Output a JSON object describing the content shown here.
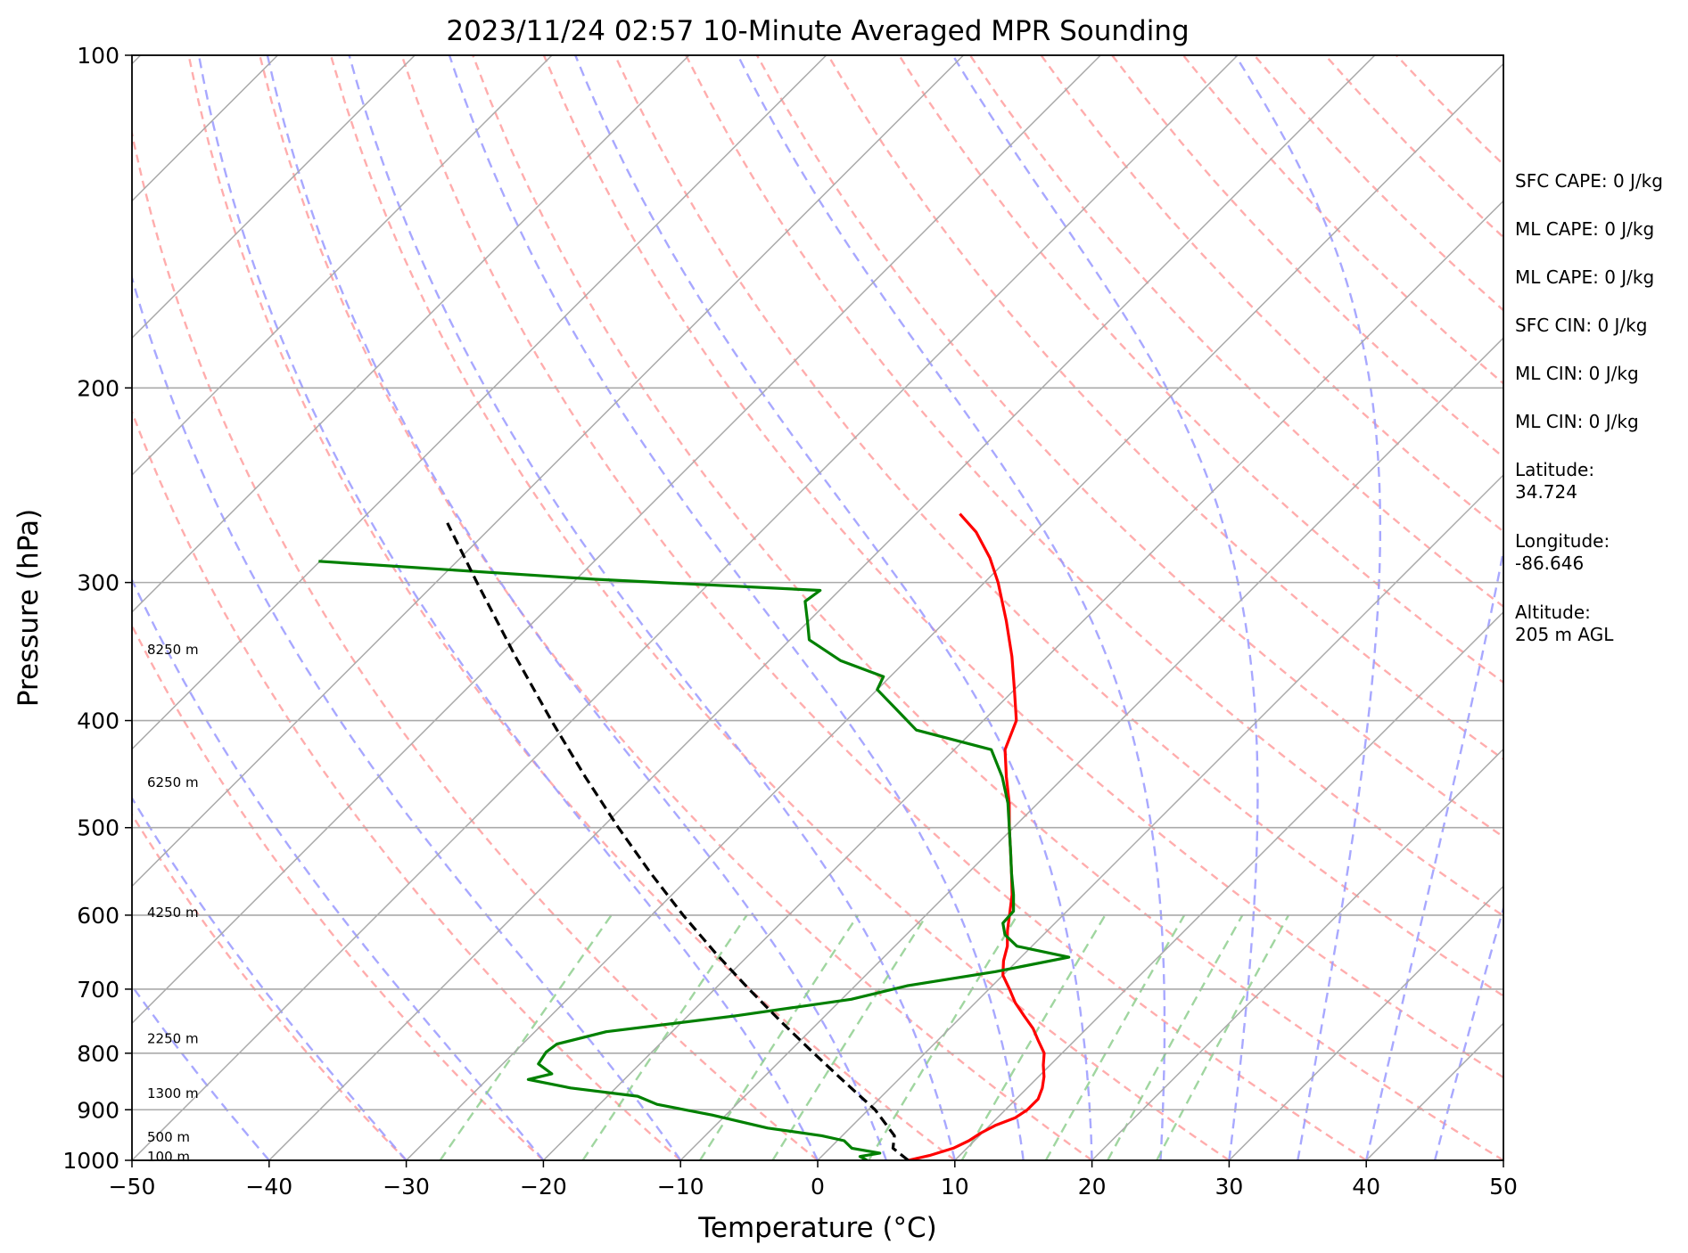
{
  "chart_data": {
    "type": "line",
    "subtype": "skew-t log-p",
    "title": "2023/11/24 02:57 10-Minute Averaged MPR Sounding",
    "xlabel": "Temperature (°C)",
    "ylabel": "Pressure (hPa)",
    "xlim": [
      -50,
      50
    ],
    "ylim": [
      1000,
      100
    ],
    "y_scale": "log",
    "skew": "45deg",
    "grid": true,
    "x_ticks": [
      "−50",
      "−40",
      "−30",
      "−20",
      "−10",
      "0",
      "10",
      "20",
      "30",
      "40",
      "50"
    ],
    "y_ticks": [
      "100",
      "200",
      "300",
      "400",
      "500",
      "600",
      "700",
      "800",
      "900",
      "1000"
    ],
    "height_labels": [
      {
        "text": "8250 m",
        "p": 345
      },
      {
        "text": "6250 m",
        "p": 455
      },
      {
        "text": "4250 m",
        "p": 597
      },
      {
        "text": "2250 m",
        "p": 776
      },
      {
        "text": "1300 m",
        "p": 870
      },
      {
        "text": "500 m",
        "p": 953
      },
      {
        "text": "100 m",
        "p": 993
      }
    ],
    "colors": {
      "temperature": "#ff0000",
      "dewpoint": "#008000",
      "parcel": "#000000",
      "isotherms": "#aaaaaa",
      "dry_adiabats": "#ff9999",
      "moist_adiabats": "#9999ff",
      "mixing_ratio": "#88cc88"
    },
    "series": [
      {
        "name": "Temperature",
        "points": [
          {
            "p": 1000,
            "t": 6.6
          },
          {
            "p": 990,
            "t": 7.8
          },
          {
            "p": 975,
            "t": 9.0
          },
          {
            "p": 960,
            "t": 9.6
          },
          {
            "p": 945,
            "t": 9.9
          },
          {
            "p": 930,
            "t": 10.4
          },
          {
            "p": 915,
            "t": 11.3
          },
          {
            "p": 900,
            "t": 11.6
          },
          {
            "p": 880,
            "t": 11.6
          },
          {
            "p": 860,
            "t": 11.1
          },
          {
            "p": 840,
            "t": 10.4
          },
          {
            "p": 820,
            "t": 9.5
          },
          {
            "p": 800,
            "t": 8.7
          },
          {
            "p": 780,
            "t": 7.4
          },
          {
            "p": 760,
            "t": 6.1
          },
          {
            "p": 740,
            "t": 4.5
          },
          {
            "p": 720,
            "t": 2.9
          },
          {
            "p": 700,
            "t": 1.5
          },
          {
            "p": 680,
            "t": 0.0
          },
          {
            "p": 660,
            "t": -1.0
          },
          {
            "p": 640,
            "t": -1.8
          },
          {
            "p": 620,
            "t": -2.9
          },
          {
            "p": 600,
            "t": -3.9
          },
          {
            "p": 575,
            "t": -5.2
          },
          {
            "p": 550,
            "t": -6.8
          },
          {
            "p": 525,
            "t": -8.5
          },
          {
            "p": 500,
            "t": -10.3
          },
          {
            "p": 475,
            "t": -12.1
          },
          {
            "p": 450,
            "t": -14.2
          },
          {
            "p": 425,
            "t": -16.3
          },
          {
            "p": 400,
            "t": -17.6
          },
          {
            "p": 375,
            "t": -20.0
          },
          {
            "p": 350,
            "t": -22.6
          },
          {
            "p": 325,
            "t": -25.6
          },
          {
            "p": 300,
            "t": -29.0
          },
          {
            "p": 285,
            "t": -31.4
          },
          {
            "p": 270,
            "t": -34.3
          },
          {
            "p": 260,
            "t": -36.8
          }
        ]
      },
      {
        "name": "Dewpoint",
        "points": [
          {
            "p": 1000,
            "t": 3.6
          },
          {
            "p": 992,
            "t": 2.8
          },
          {
            "p": 985,
            "t": 4.0
          },
          {
            "p": 975,
            "t": 1.6
          },
          {
            "p": 960,
            "t": 0.5
          },
          {
            "p": 950,
            "t": -1.5
          },
          {
            "p": 935,
            "t": -6.0
          },
          {
            "p": 910,
            "t": -11.0
          },
          {
            "p": 890,
            "t": -15.8
          },
          {
            "p": 875,
            "t": -17.8
          },
          {
            "p": 860,
            "t": -23.3
          },
          {
            "p": 845,
            "t": -27.0
          },
          {
            "p": 835,
            "t": -25.7
          },
          {
            "p": 818,
            "t": -27.4
          },
          {
            "p": 798,
            "t": -27.7
          },
          {
            "p": 785,
            "t": -27.5
          },
          {
            "p": 765,
            "t": -24.8
          },
          {
            "p": 740,
            "t": -16.5
          },
          {
            "p": 715,
            "t": -9.3
          },
          {
            "p": 695,
            "t": -6.2
          },
          {
            "p": 675,
            "t": -0.8
          },
          {
            "p": 655,
            "t": 3.5
          },
          {
            "p": 640,
            "t": -1.1
          },
          {
            "p": 625,
            "t": -2.8
          },
          {
            "p": 610,
            "t": -3.8
          },
          {
            "p": 595,
            "t": -3.9
          },
          {
            "p": 575,
            "t": -5.1
          },
          {
            "p": 550,
            "t": -6.8
          },
          {
            "p": 525,
            "t": -8.5
          },
          {
            "p": 500,
            "t": -10.3
          },
          {
            "p": 475,
            "t": -12.2
          },
          {
            "p": 450,
            "t": -14.5
          },
          {
            "p": 425,
            "t": -17.3
          },
          {
            "p": 408,
            "t": -24.2
          },
          {
            "p": 390,
            "t": -27.3
          },
          {
            "p": 375,
            "t": -30.0
          },
          {
            "p": 365,
            "t": -30.5
          },
          {
            "p": 353,
            "t": -34.8
          },
          {
            "p": 338,
            "t": -38.6
          },
          {
            "p": 325,
            "t": -40.1
          },
          {
            "p": 312,
            "t": -41.7
          },
          {
            "p": 305,
            "t": -41.4
          },
          {
            "p": 298,
            "t": -58.6
          },
          {
            "p": 287,
            "t": -80.1
          }
        ]
      },
      {
        "name": "Parcel",
        "points": [
          {
            "p": 1000,
            "t": 6.6
          },
          {
            "p": 975,
            "t": 4.6
          },
          {
            "p": 950,
            "t": 3.8
          },
          {
            "p": 900,
            "t": 0.5
          },
          {
            "p": 850,
            "t": -3.7
          },
          {
            "p": 800,
            "t": -8.1
          },
          {
            "p": 750,
            "t": -12.7
          },
          {
            "p": 700,
            "t": -17.5
          },
          {
            "p": 650,
            "t": -22.5
          },
          {
            "p": 600,
            "t": -27.7
          },
          {
            "p": 550,
            "t": -33.1
          },
          {
            "p": 500,
            "t": -38.8
          },
          {
            "p": 450,
            "t": -44.9
          },
          {
            "p": 400,
            "t": -51.5
          },
          {
            "p": 350,
            "t": -58.8
          },
          {
            "p": 300,
            "t": -67.0
          },
          {
            "p": 265,
            "t": -73.5
          }
        ]
      }
    ],
    "isotherms": [
      -150,
      -140,
      -130,
      -120,
      -110,
      -100,
      -90,
      -80,
      -70,
      -60,
      -50,
      -40,
      -30,
      -20,
      -10,
      0,
      10,
      20,
      30,
      40,
      50
    ],
    "dry_adiabats_c": [
      -30,
      -20,
      -10,
      0,
      10,
      20,
      30,
      40,
      50,
      60,
      70,
      80,
      90,
      100,
      110,
      120,
      130,
      140,
      150,
      160,
      170,
      180
    ],
    "moist_adiabats_c": [
      -40,
      -30,
      -20,
      -10,
      0,
      5,
      10,
      15,
      20,
      25,
      30,
      35,
      40,
      45
    ],
    "mixing_ratio_gkg": [
      0.4,
      1,
      2,
      3,
      5,
      8,
      12,
      16,
      20
    ]
  },
  "info_panel": [
    "SFC CAPE: 0 J/kg",
    "ML CAPE: 0 J/kg",
    "ML CAPE: 0 J/kg",
    "SFC CIN: 0 J/kg",
    "ML CIN: 0 J/kg",
    "ML CIN: 0 J/kg",
    "Latitude:\n34.724",
    "Longitude:\n-86.646",
    "Altitude:\n205 m AGL"
  ]
}
